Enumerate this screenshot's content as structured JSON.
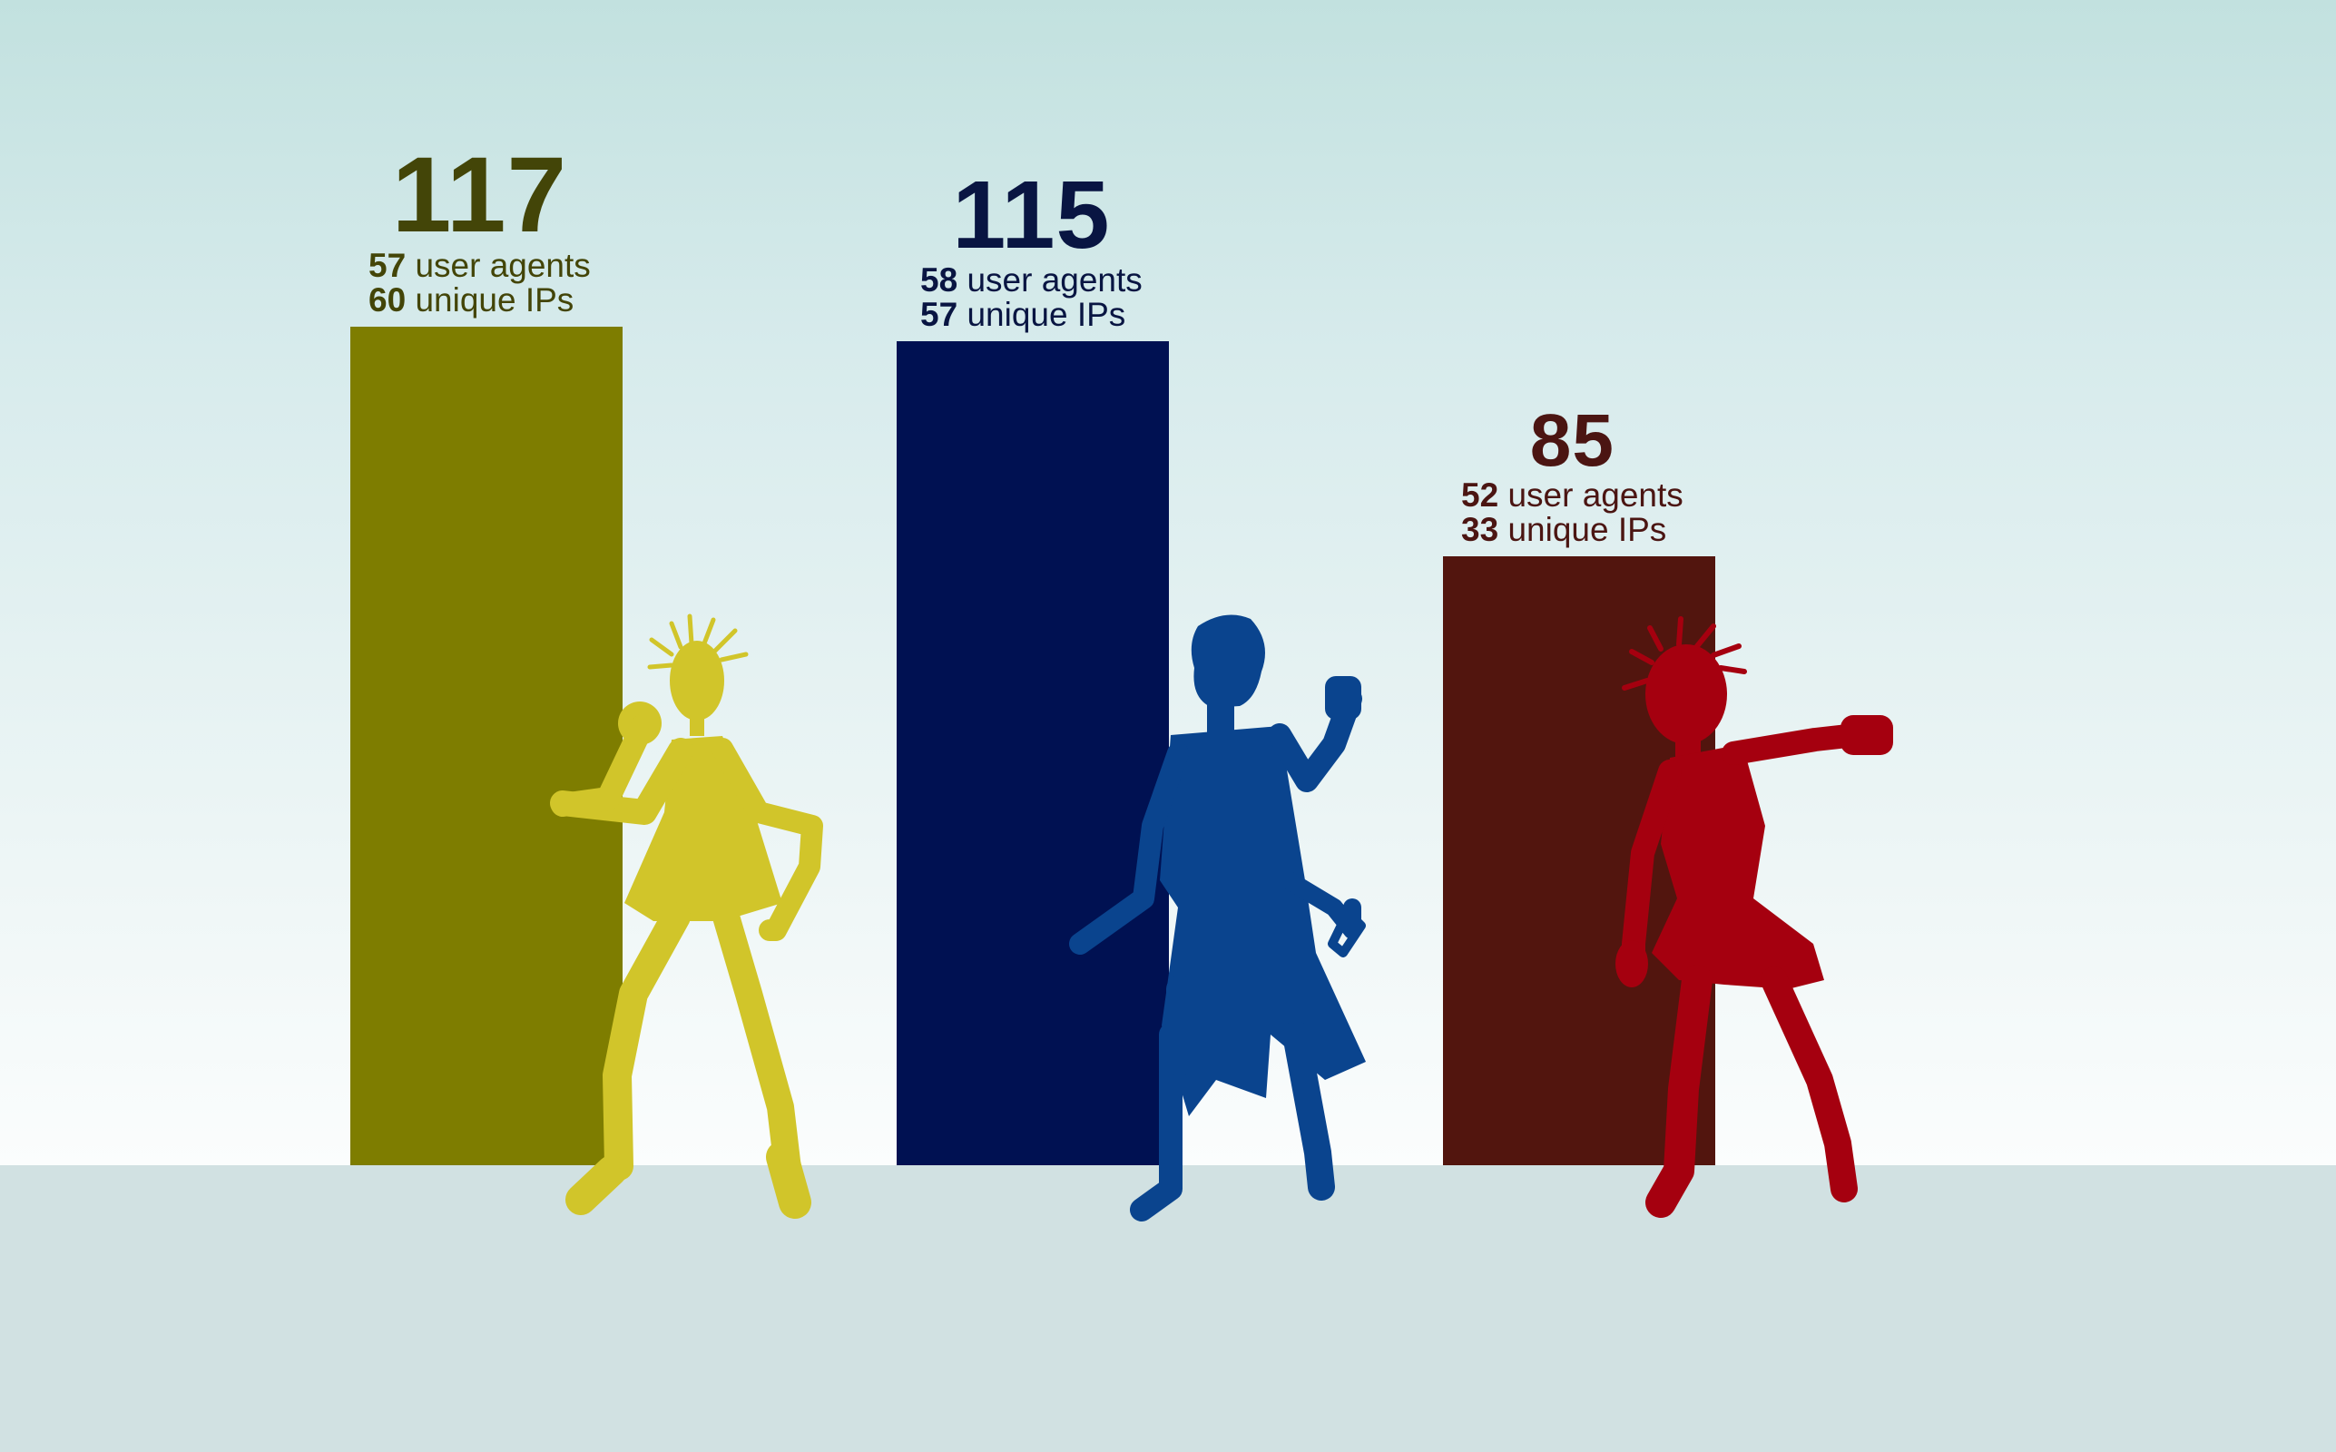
{
  "chart_data": {
    "type": "bar",
    "categories": [
      "",
      "",
      ""
    ],
    "values": [
      117,
      115,
      85
    ],
    "ylim": [
      0,
      117
    ],
    "grid": false,
    "legend": "none",
    "colors": [
      "#7e7d00",
      "#001152",
      "#52150e"
    ],
    "label_colors": [
      "#434508",
      "#091542",
      "#4b1512"
    ],
    "figure_colors": [
      "#d1c52a",
      "#0a448e",
      "#a5000f"
    ],
    "bars": [
      {
        "total": "117",
        "user_agents": "57",
        "user_agents_label": "user agents",
        "unique_ips": "60",
        "unique_ips_label": "unique IPs"
      },
      {
        "total": "115",
        "user_agents": "58",
        "user_agents_label": "user agents",
        "unique_ips": "57",
        "unique_ips_label": "unique IPs"
      },
      {
        "total": "85",
        "user_agents": "52",
        "user_agents_label": "user agents",
        "unique_ips": "33",
        "unique_ips_label": "unique IPs"
      }
    ]
  }
}
